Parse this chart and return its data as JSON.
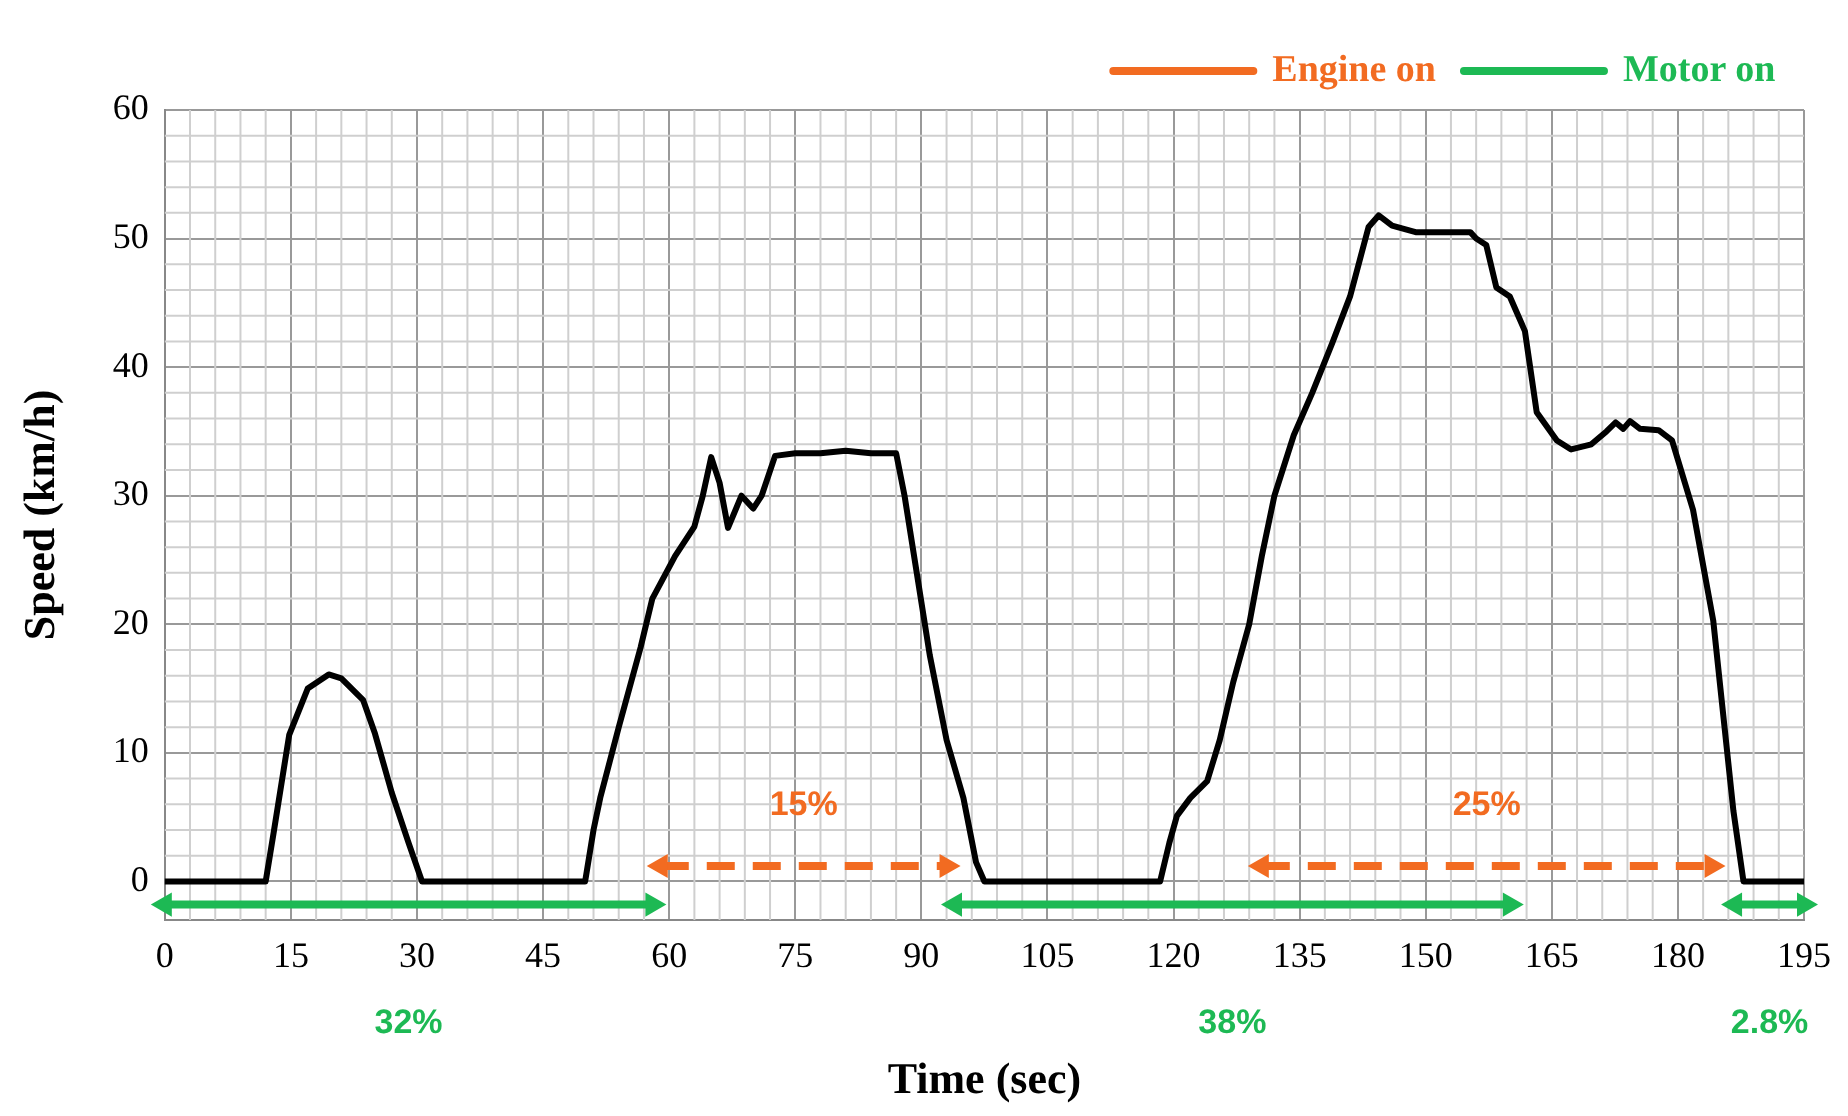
{
  "chart_data": {
    "type": "line",
    "xlabel": "Time (sec)",
    "ylabel": "Speed (km/h)",
    "xlim": [
      0,
      195
    ],
    "xticks": [
      0,
      15,
      30,
      45,
      60,
      75,
      90,
      105,
      120,
      135,
      150,
      165,
      180,
      195
    ],
    "ylim": [
      -3,
      60
    ],
    "yticks": [
      0,
      10,
      20,
      30,
      40,
      50,
      60
    ],
    "grid": true,
    "legend": "top right",
    "marker": "none",
    "line_style": "solid",
    "series": [
      {
        "color": "#000000",
        "x": [
          0,
          12,
          13,
          14.8,
          17,
          19.5,
          21,
          23.6,
          25,
          27,
          29,
          30.6,
          40,
          50,
          51,
          51.8,
          54,
          56.6,
          58,
          60.7,
          63,
          64,
          65,
          66,
          67,
          68.6,
          70,
          71,
          72.6,
          75,
          78,
          81,
          84,
          87,
          88,
          91,
          93,
          95,
          96.5,
          97.5,
          110,
          118.4,
          119.5,
          120.4,
          122,
          124,
          125.5,
          127.1,
          129,
          130.5,
          132,
          134.3,
          136.5,
          138.9,
          141,
          143.2,
          144.4,
          146,
          148.8,
          152,
          155.3,
          156,
          157.2,
          158.4,
          160,
          161.8,
          163.2,
          165.6,
          167.3,
          169.7,
          171.5,
          172.6,
          173.5,
          174.3,
          175.5,
          177.7,
          179.3,
          181.8,
          184.2,
          186.6,
          187.8,
          195
        ],
        "values": [
          0,
          0,
          4,
          11.4,
          15,
          16.1,
          15.8,
          14.1,
          11.5,
          6.9,
          3,
          0,
          0,
          0,
          4,
          6.5,
          12,
          18.2,
          22,
          25.3,
          27.6,
          30,
          33,
          31,
          27.5,
          30,
          29,
          30,
          33.1,
          33.3,
          33.3,
          33.5,
          33.3,
          33.3,
          30,
          17.6,
          11,
          6.5,
          1.5,
          0,
          0,
          0,
          3,
          5.1,
          6.5,
          7.8,
          11,
          15.5,
          20,
          25.3,
          30,
          34.7,
          38,
          41.9,
          45.5,
          50.9,
          51.8,
          51,
          50.5,
          50.5,
          50.5,
          50,
          49.5,
          46.2,
          45.5,
          42.8,
          36.5,
          34.3,
          33.6,
          34,
          35,
          35.7,
          35.2,
          35.8,
          35.2,
          35.1,
          34.3,
          28.9,
          20.3,
          5.5,
          0,
          0
        ]
      },
      {
        "name": "Engine on",
        "color": "#f26b21",
        "line_style": "dashed",
        "marker": "triangle",
        "x": [
          59,
          93,
          110,
          130.5,
          184
        ],
        "values": [
          1.2,
          1.2,
          null,
          1.2,
          1.2
        ]
      },
      {
        "name": "Motor on",
        "color": "#1db954",
        "line_style": "solid",
        "marker": "triangle",
        "x": [
          0,
          58,
          76,
          94,
          160,
          173,
          186.8,
          195
        ],
        "values": [
          -1.8,
          -1.8,
          null,
          -1.8,
          -1.8,
          null,
          -1.8,
          -1.8
        ]
      }
    ],
    "annotations": [
      "15%",
      "25%",
      "32%",
      "38%",
      "2.8%"
    ]
  }
}
